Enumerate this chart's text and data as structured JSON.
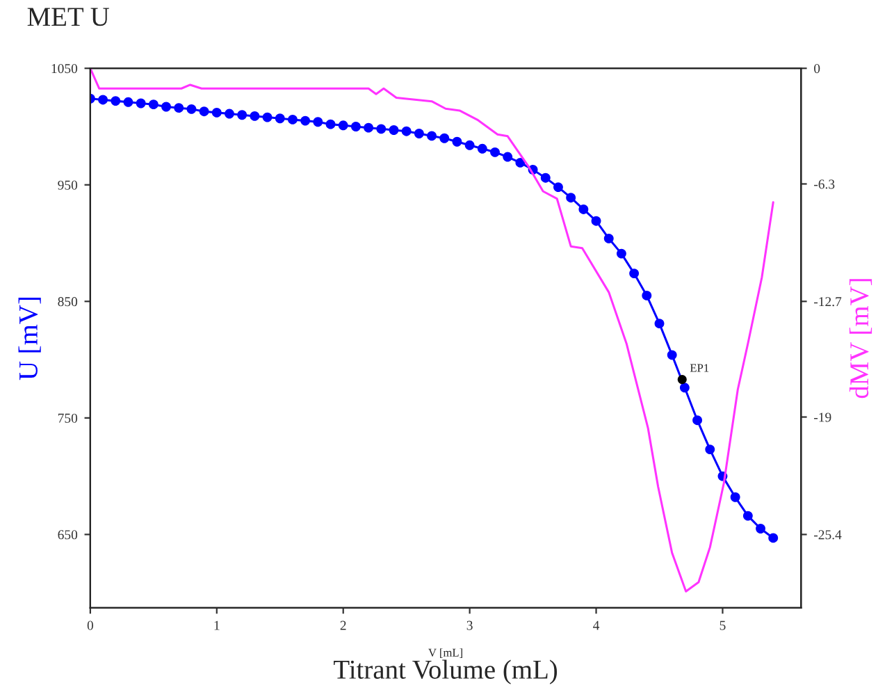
{
  "chart_data": {
    "type": "line",
    "title": "MET U",
    "xlabel": "Titrant Volume (mL)",
    "ylabel": "U [mV]",
    "y2label": "dMV [mV]",
    "xlim": [
      0,
      5.62
    ],
    "xticks": [
      0,
      1,
      2,
      3,
      4,
      5
    ],
    "ylim": [
      587,
      1050
    ],
    "yticks": [
      650,
      750,
      850,
      950,
      1050
    ],
    "y2lim": [
      -29.4,
      0
    ],
    "y2ticks": [
      -25.4,
      -19,
      -12.7,
      -6.3,
      0
    ],
    "grid": false,
    "legend": false,
    "annotations": [
      {
        "text": "EP1",
        "x": 4.68,
        "y": 783
      },
      "V [mL]"
    ],
    "series": [
      {
        "color": "#0000ff",
        "marker": "circle",
        "line_style": "solid",
        "x": [
          0,
          0.1,
          0.2,
          0.3,
          0.4,
          0.5,
          0.6,
          0.7,
          0.8,
          0.9,
          1.0,
          1.1,
          1.2,
          1.3,
          1.4,
          1.5,
          1.6,
          1.7,
          1.8,
          1.9,
          2.0,
          2.1,
          2.2,
          2.3,
          2.4,
          2.5,
          2.6,
          2.7,
          2.8,
          2.9,
          3.0,
          3.1,
          3.2,
          3.3,
          3.4,
          3.5,
          3.6,
          3.7,
          3.8,
          3.9,
          4.0,
          4.1,
          4.2,
          4.3,
          4.4,
          4.5,
          4.6,
          4.7,
          4.8,
          4.9,
          5.0,
          5.1,
          5.2,
          5.3,
          5.4
        ],
        "values": [
          1024,
          1023,
          1022,
          1021,
          1020,
          1019,
          1017,
          1016,
          1015,
          1013,
          1012,
          1011,
          1010,
          1009,
          1008,
          1007,
          1006,
          1005,
          1004,
          1002,
          1001,
          1000,
          999,
          998,
          997,
          996,
          994,
          992,
          990,
          987,
          984,
          981,
          978,
          974,
          969,
          963,
          956,
          948,
          939,
          929,
          919,
          904,
          891,
          874,
          855,
          831,
          804,
          776,
          748,
          723,
          700,
          682,
          666,
          655,
          647
        ]
      },
      {
        "axis": "y2",
        "color": "#ff33ff",
        "marker": "none",
        "line_style": "solid",
        "x": [
          0,
          0.07,
          0.72,
          0.79,
          0.88,
          2.2,
          2.26,
          2.32,
          2.42,
          2.7,
          2.81,
          2.92,
          3.06,
          3.22,
          3.3,
          3.47,
          3.58,
          3.69,
          3.8,
          3.89,
          4.1,
          4.24,
          4.41,
          4.49,
          4.6,
          4.71,
          4.81,
          4.9,
          5.01,
          5.12,
          5.2,
          5.31,
          5.4
        ],
        "values": [
          0,
          -1.1,
          -1.1,
          -0.9,
          -1.1,
          -1.1,
          -1.4,
          -1.1,
          -1.6,
          -1.8,
          -2.2,
          -2.3,
          -2.8,
          -3.6,
          -3.7,
          -5.4,
          -6.7,
          -7.1,
          -9.7,
          -9.8,
          -12.2,
          -15.0,
          -19.6,
          -22.8,
          -26.4,
          -28.5,
          -28.0,
          -26.1,
          -22.6,
          -17.5,
          -15.0,
          -11.4,
          -7.3
        ]
      },
      {
        "type": "scatter",
        "color": "#000000",
        "marker": "circle",
        "x": [
          4.68
        ],
        "values": [
          783
        ]
      }
    ]
  }
}
